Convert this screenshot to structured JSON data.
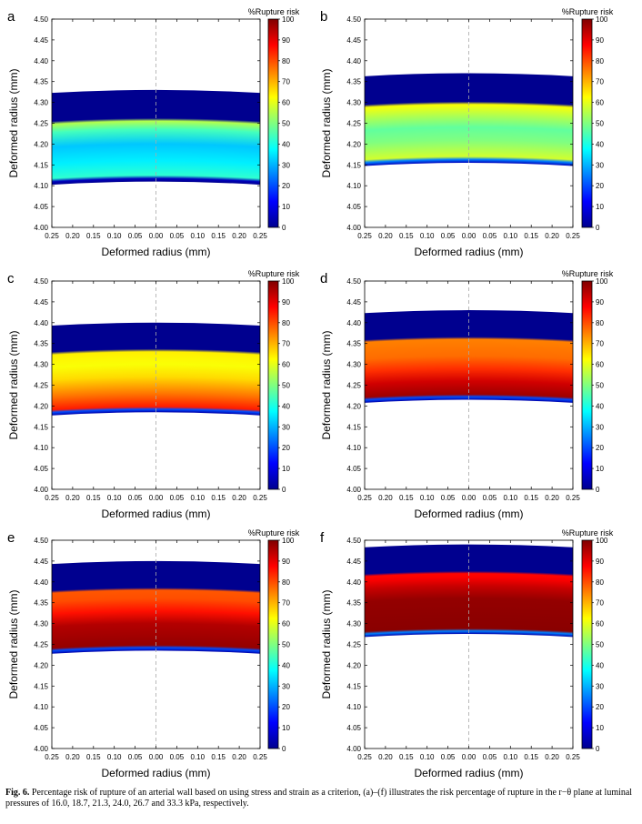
{
  "colorbar": {
    "title": "%Rupture  risk",
    "ticks": [
      0,
      10,
      20,
      30,
      40,
      50,
      60,
      70,
      80,
      90,
      100
    ],
    "colormap": "jet",
    "colors": [
      "#00008f",
      "#0000ff",
      "#0080ff",
      "#00ffff",
      "#80ff80",
      "#ffff00",
      "#ff8000",
      "#ff0000",
      "#800000"
    ]
  },
  "caption": {
    "label": "Fig. 6.",
    "text": " Percentage risk of rupture of an arterial wall based on using stress and strain as a criterion, (a)–(f) illustrates the risk percentage of rupture in the r−θ plane at luminal pressures of 16.0, 18.7, 21.3, 24.0, 26.7 and 33.3 kPa, respectively."
  },
  "chart_data": [
    {
      "type": "heatmap",
      "panel": "a",
      "xlabel": "Deformed  radius  (mm)",
      "ylabel": "Deformed  radius  (mm)",
      "xlim": [
        -0.25,
        0.25
      ],
      "ylim": [
        4.0,
        4.5
      ],
      "x_tick_labels": [
        "0.25",
        "0.20",
        "0.15",
        "0.10",
        "0.05",
        "0.00",
        "0.05",
        "0.10",
        "0.15",
        "0.20",
        "0.25"
      ],
      "y_ticks": [
        4.0,
        4.05,
        4.1,
        4.15,
        4.2,
        4.25,
        4.3,
        4.35,
        4.4,
        4.45,
        4.5
      ],
      "inner_radius": 4.11,
      "outer_radius": 4.33,
      "profile": [
        {
          "r": 4.11,
          "risk": 0
        },
        {
          "r": 4.117,
          "risk": 5
        },
        {
          "r": 4.125,
          "risk": 42
        },
        {
          "r": 4.16,
          "risk": 36
        },
        {
          "r": 4.2,
          "risk": 32
        },
        {
          "r": 4.235,
          "risk": 44
        },
        {
          "r": 4.255,
          "risk": 55
        },
        {
          "r": 4.262,
          "risk": 0
        },
        {
          "r": 4.33,
          "risk": 0
        }
      ]
    },
    {
      "type": "heatmap",
      "panel": "b",
      "xlabel": "Deformed  radius  (mm)",
      "ylabel": "Deformed  radius  (mm)",
      "xlim": [
        -0.25,
        0.25
      ],
      "ylim": [
        4.0,
        4.5
      ],
      "x_tick_labels": [
        "0.25",
        "0.20",
        "0.15",
        "0.10",
        "0.05",
        "0.00",
        "0.05",
        "0.10",
        "0.15",
        "0.20",
        "0.25"
      ],
      "y_ticks": [
        4.0,
        4.05,
        4.1,
        4.15,
        4.2,
        4.25,
        4.3,
        4.35,
        4.4,
        4.45,
        4.5
      ],
      "inner_radius": 4.155,
      "outer_radius": 4.37,
      "profile": [
        {
          "r": 4.155,
          "risk": 5
        },
        {
          "r": 4.163,
          "risk": 25
        },
        {
          "r": 4.17,
          "risk": 58
        },
        {
          "r": 4.21,
          "risk": 50
        },
        {
          "r": 4.24,
          "risk": 47
        },
        {
          "r": 4.27,
          "risk": 55
        },
        {
          "r": 4.295,
          "risk": 62
        },
        {
          "r": 4.302,
          "risk": 0
        },
        {
          "r": 4.37,
          "risk": 0
        }
      ]
    },
    {
      "type": "heatmap",
      "panel": "c",
      "xlabel": "Deformed  radius  (mm)",
      "ylabel": "Deformed  radius  (mm)",
      "xlim": [
        -0.25,
        0.25
      ],
      "ylim": [
        4.0,
        4.5
      ],
      "x_tick_labels": [
        "0.25",
        "0.20",
        "0.15",
        "0.10",
        "0.05",
        "0.00",
        "0.05",
        "0.10",
        "0.15",
        "0.20",
        "0.25"
      ],
      "y_ticks": [
        4.0,
        4.05,
        4.1,
        4.15,
        4.2,
        4.25,
        4.3,
        4.35,
        4.4,
        4.45,
        4.5
      ],
      "inner_radius": 4.185,
      "outer_radius": 4.4,
      "profile": [
        {
          "r": 4.185,
          "risk": 3
        },
        {
          "r": 4.192,
          "risk": 20
        },
        {
          "r": 4.198,
          "risk": 85
        },
        {
          "r": 4.23,
          "risk": 76
        },
        {
          "r": 4.27,
          "risk": 66
        },
        {
          "r": 4.3,
          "risk": 62
        },
        {
          "r": 4.33,
          "risk": 64
        },
        {
          "r": 4.337,
          "risk": 0
        },
        {
          "r": 4.4,
          "risk": 0
        }
      ]
    },
    {
      "type": "heatmap",
      "panel": "d",
      "xlabel": "Deformed  radius  (mm)",
      "ylabel": "Deformed  radius  (mm)",
      "xlim": [
        -0.25,
        0.25
      ],
      "ylim": [
        4.0,
        4.5
      ],
      "x_tick_labels": [
        "0.25",
        "0.20",
        "0.15",
        "0.10",
        "0.05",
        "0.00",
        "0.05",
        "0.10",
        "0.15",
        "0.20",
        "0.25"
      ],
      "y_ticks": [
        4.0,
        4.05,
        4.1,
        4.15,
        4.2,
        4.25,
        4.3,
        4.35,
        4.4,
        4.45,
        4.5
      ],
      "inner_radius": 4.215,
      "outer_radius": 4.43,
      "profile": [
        {
          "r": 4.215,
          "risk": 3
        },
        {
          "r": 4.222,
          "risk": 20
        },
        {
          "r": 4.228,
          "risk": 97
        },
        {
          "r": 4.26,
          "risk": 92
        },
        {
          "r": 4.29,
          "risk": 83
        },
        {
          "r": 4.32,
          "risk": 77
        },
        {
          "r": 4.36,
          "risk": 75
        },
        {
          "r": 4.366,
          "risk": 0
        },
        {
          "r": 4.43,
          "risk": 0
        }
      ]
    },
    {
      "type": "heatmap",
      "panel": "e",
      "xlabel": "Deformed  radius  (mm)",
      "ylabel": "Deformed  radius  (mm)",
      "xlim": [
        -0.25,
        0.25
      ],
      "ylim": [
        4.0,
        4.5
      ],
      "x_tick_labels": [
        "0.25",
        "0.20",
        "0.15",
        "0.10",
        "0.05",
        "0.00",
        "0.05",
        "0.10",
        "0.15",
        "0.20",
        "0.25"
      ],
      "y_ticks": [
        4.0,
        4.05,
        4.1,
        4.15,
        4.2,
        4.25,
        4.3,
        4.35,
        4.4,
        4.45,
        4.5
      ],
      "inner_radius": 4.235,
      "outer_radius": 4.45,
      "profile": [
        {
          "r": 4.235,
          "risk": 3
        },
        {
          "r": 4.242,
          "risk": 20
        },
        {
          "r": 4.248,
          "risk": 98
        },
        {
          "r": 4.3,
          "risk": 95
        },
        {
          "r": 4.33,
          "risk": 86
        },
        {
          "r": 4.36,
          "risk": 80
        },
        {
          "r": 4.38,
          "risk": 79
        },
        {
          "r": 4.386,
          "risk": 0
        },
        {
          "r": 4.45,
          "risk": 0
        }
      ]
    },
    {
      "type": "heatmap",
      "panel": "f",
      "xlabel": "Deformed  radius  (mm)",
      "ylabel": "Deformed  radius  (mm)",
      "xlim": [
        -0.25,
        0.25
      ],
      "ylim": [
        4.0,
        4.5
      ],
      "x_tick_labels": [
        "0.25",
        "0.20",
        "0.15",
        "0.10",
        "0.05",
        "0.00",
        "0.05",
        "0.10",
        "0.15",
        "0.20",
        "0.25"
      ],
      "y_ticks": [
        4.0,
        4.05,
        4.1,
        4.15,
        4.2,
        4.25,
        4.3,
        4.35,
        4.4,
        4.45,
        4.5
      ],
      "inner_radius": 4.275,
      "outer_radius": 4.49,
      "profile": [
        {
          "r": 4.275,
          "risk": 3
        },
        {
          "r": 4.282,
          "risk": 25
        },
        {
          "r": 4.288,
          "risk": 99
        },
        {
          "r": 4.36,
          "risk": 98
        },
        {
          "r": 4.39,
          "risk": 93
        },
        {
          "r": 4.41,
          "risk": 88
        },
        {
          "r": 4.42,
          "risk": 87
        },
        {
          "r": 4.426,
          "risk": 0
        },
        {
          "r": 4.49,
          "risk": 0
        }
      ]
    }
  ]
}
